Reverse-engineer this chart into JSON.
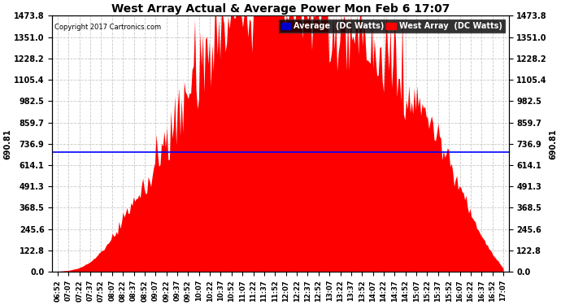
{
  "title": "West Array Actual & Average Power Mon Feb 6 17:07",
  "copyright": "Copyright 2017 Cartronics.com",
  "average_value": 690.81,
  "y_ticks": [
    0.0,
    122.8,
    245.6,
    368.5,
    491.3,
    614.1,
    736.9,
    859.7,
    982.5,
    1105.4,
    1228.2,
    1351.0,
    1473.8
  ],
  "ylim": [
    0,
    1473.8
  ],
  "fill_color": "#FF0000",
  "line_color": "#0000FF",
  "background_color": "#FFFFFF",
  "grid_color": "#C8C8C8",
  "legend_avg_bg": "#0000CC",
  "legend_west_bg": "#FF0000",
  "x_labels": [
    "06:52",
    "07:07",
    "07:22",
    "07:37",
    "07:52",
    "08:07",
    "08:22",
    "08:37",
    "08:52",
    "09:07",
    "09:22",
    "09:37",
    "09:52",
    "10:07",
    "10:22",
    "10:37",
    "10:52",
    "11:07",
    "11:22",
    "11:37",
    "11:52",
    "12:07",
    "12:22",
    "12:37",
    "12:52",
    "13:07",
    "13:22",
    "13:37",
    "13:52",
    "14:07",
    "14:22",
    "14:37",
    "14:52",
    "15:07",
    "15:22",
    "15:37",
    "15:52",
    "16:07",
    "16:22",
    "16:37",
    "16:52",
    "17:07"
  ],
  "west_array_data": [
    3,
    8,
    22,
    55,
    110,
    180,
    270,
    360,
    450,
    540,
    640,
    760,
    870,
    990,
    1100,
    1200,
    1290,
    1370,
    1420,
    1450,
    1460,
    1455,
    1430,
    1400,
    1360,
    1310,
    1260,
    1210,
    1160,
    1110,
    1060,
    1000,
    940,
    870,
    790,
    700,
    580,
    450,
    320,
    200,
    100,
    20
  ],
  "spike_data": [
    3,
    8,
    22,
    55,
    130,
    200,
    310,
    390,
    500,
    620,
    720,
    870,
    1000,
    1130,
    1270,
    1380,
    1420,
    1470,
    1473,
    1460,
    1468,
    1465,
    1445,
    1410,
    1370,
    1330,
    1270,
    1215,
    1165,
    1115,
    1065,
    1010,
    950,
    880,
    800,
    710,
    590,
    460,
    330,
    210,
    110,
    25
  ]
}
